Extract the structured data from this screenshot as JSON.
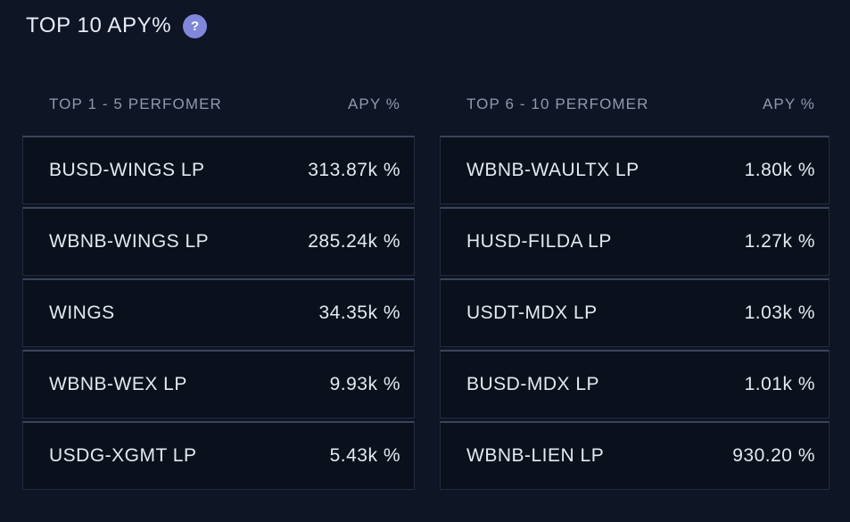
{
  "header": {
    "title": "TOP 10 APY%",
    "help_icon": {
      "name": "help-icon",
      "glyph": "?",
      "background_color": "#8188db",
      "glyph_color": "#ffffff"
    }
  },
  "colors": {
    "page_background": "#0e1525",
    "row_background": "#0a101c",
    "row_border_top": "#3a4459",
    "row_border": "#232c40",
    "header_text": "#9099ad",
    "row_text": "#e5e8ef"
  },
  "tables": [
    {
      "name_header": "TOP 1 - 5 PERFOMER",
      "value_header": "APY %",
      "rows": [
        {
          "name": "BUSD-WINGS LP",
          "apy": "313.87k %"
        },
        {
          "name": "WBNB-WINGS LP",
          "apy": "285.24k %"
        },
        {
          "name": "WINGS",
          "apy": "34.35k %"
        },
        {
          "name": "WBNB-WEX LP",
          "apy": "9.93k %"
        },
        {
          "name": "USDG-XGMT LP",
          "apy": "5.43k %"
        }
      ]
    },
    {
      "name_header": "TOP 6 - 10 PERFOMER",
      "value_header": "APY %",
      "rows": [
        {
          "name": "WBNB-WAULTX LP",
          "apy": "1.80k %"
        },
        {
          "name": "HUSD-FILDA LP",
          "apy": "1.27k %"
        },
        {
          "name": "USDT-MDX LP",
          "apy": "1.03k %"
        },
        {
          "name": "BUSD-MDX LP",
          "apy": "1.01k %"
        },
        {
          "name": "WBNB-LIEN LP",
          "apy": "930.20 %"
        }
      ]
    }
  ]
}
